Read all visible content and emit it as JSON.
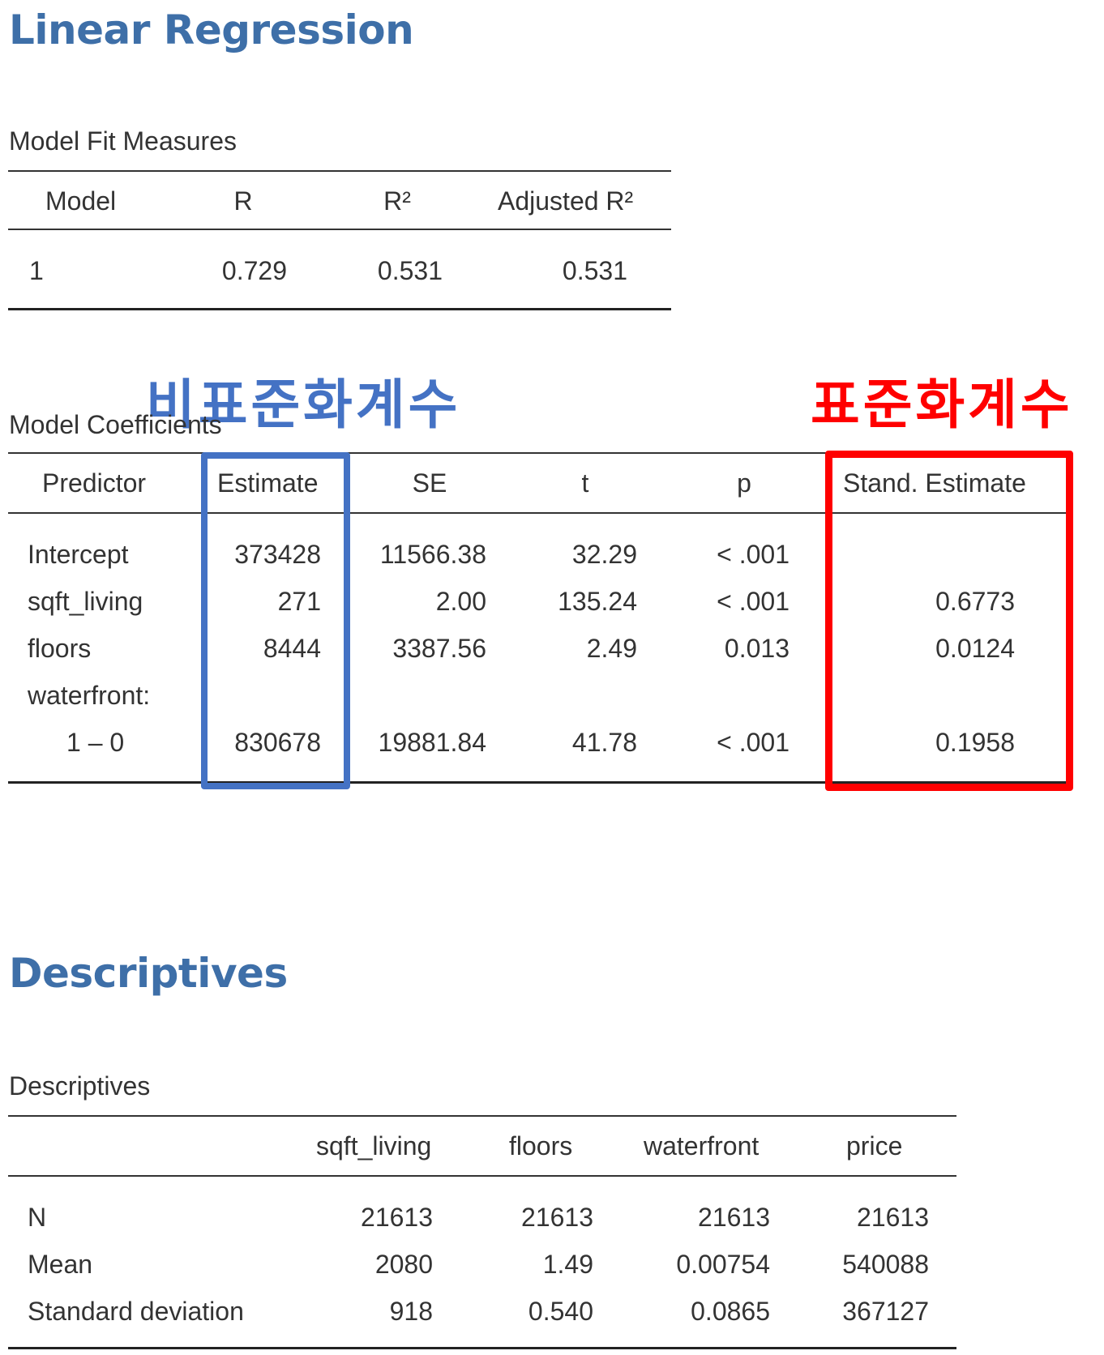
{
  "colors": {
    "heading": "#3e6fa8",
    "blue_box": "#4472c4",
    "red_box": "#ff0000"
  },
  "section1": {
    "title": "Linear Regression"
  },
  "model_fit": {
    "caption": "Model Fit Measures",
    "headers": {
      "model": "Model",
      "r": "R",
      "r2": "R²",
      "adj_r2": "Adjusted R²"
    },
    "row": {
      "model": "1",
      "r": "0.729",
      "r2": "0.531",
      "adj_r2": "0.531"
    }
  },
  "annotations": {
    "unstandardized": "비표준화계수",
    "standardized": "표준화계수"
  },
  "coefficients": {
    "caption": "Model Coefficients",
    "headers": {
      "predictor": "Predictor",
      "estimate": "Estimate",
      "se": "SE",
      "t": "t",
      "p": "p",
      "stand": "Stand. Estimate"
    },
    "rows": [
      {
        "predictor": "Intercept",
        "estimate": "373428",
        "se": "11566.38",
        "t": "32.29",
        "p": "< .001",
        "stand": ""
      },
      {
        "predictor": "sqft_living",
        "estimate": "271",
        "se": "2.00",
        "t": "135.24",
        "p": "< .001",
        "stand": "0.6773"
      },
      {
        "predictor": "floors",
        "estimate": "8444",
        "se": "3387.56",
        "t": "2.49",
        "p": "0.013",
        "stand": "0.0124"
      },
      {
        "predictor": "waterfront:",
        "estimate": "",
        "se": "",
        "t": "",
        "p": "",
        "stand": ""
      },
      {
        "predictor": "1 – 0",
        "estimate": "830678",
        "se": "19881.84",
        "t": "41.78",
        "p": "< .001",
        "stand": "0.1958"
      }
    ]
  },
  "section2": {
    "title": "Descriptives"
  },
  "descriptives": {
    "caption": "Descriptives",
    "headers": {
      "sqft_living": "sqft_living",
      "floors": "floors",
      "waterfront": "waterfront",
      "price": "price"
    },
    "rows": [
      {
        "label": "N",
        "sqft_living": "21613",
        "floors": "21613",
        "waterfront": "21613",
        "price": "21613"
      },
      {
        "label": "Mean",
        "sqft_living": "2080",
        "floors": "1.49",
        "waterfront": "0.00754",
        "price": "540088"
      },
      {
        "label": "Standard deviation",
        "sqft_living": "918",
        "floors": "0.540",
        "waterfront": "0.0865",
        "price": "367127"
      }
    ]
  }
}
